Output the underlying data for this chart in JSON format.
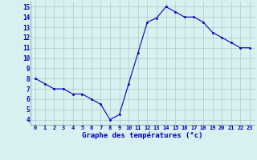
{
  "x": [
    0,
    1,
    2,
    3,
    4,
    5,
    6,
    7,
    8,
    9,
    10,
    11,
    12,
    13,
    14,
    15,
    16,
    17,
    18,
    19,
    20,
    21,
    22,
    23
  ],
  "y": [
    8.0,
    7.5,
    7.0,
    7.0,
    6.5,
    6.5,
    6.0,
    5.5,
    4.0,
    4.5,
    7.5,
    10.5,
    13.5,
    13.9,
    15.0,
    14.5,
    14.0,
    14.0,
    13.5,
    12.5,
    12.0,
    11.5,
    11.0,
    11.0
  ],
  "xlabel": "Graphe des températures (°c)",
  "ylabel_ticks": [
    4,
    5,
    6,
    7,
    8,
    9,
    10,
    11,
    12,
    13,
    14,
    15
  ],
  "ylim": [
    3.5,
    15.5
  ],
  "xlim": [
    -0.5,
    23.5
  ],
  "line_color": "#0000bb",
  "marker_color": "#0000bb",
  "bg_color": "#d8f0f0",
  "grid_color": "#aacccc"
}
